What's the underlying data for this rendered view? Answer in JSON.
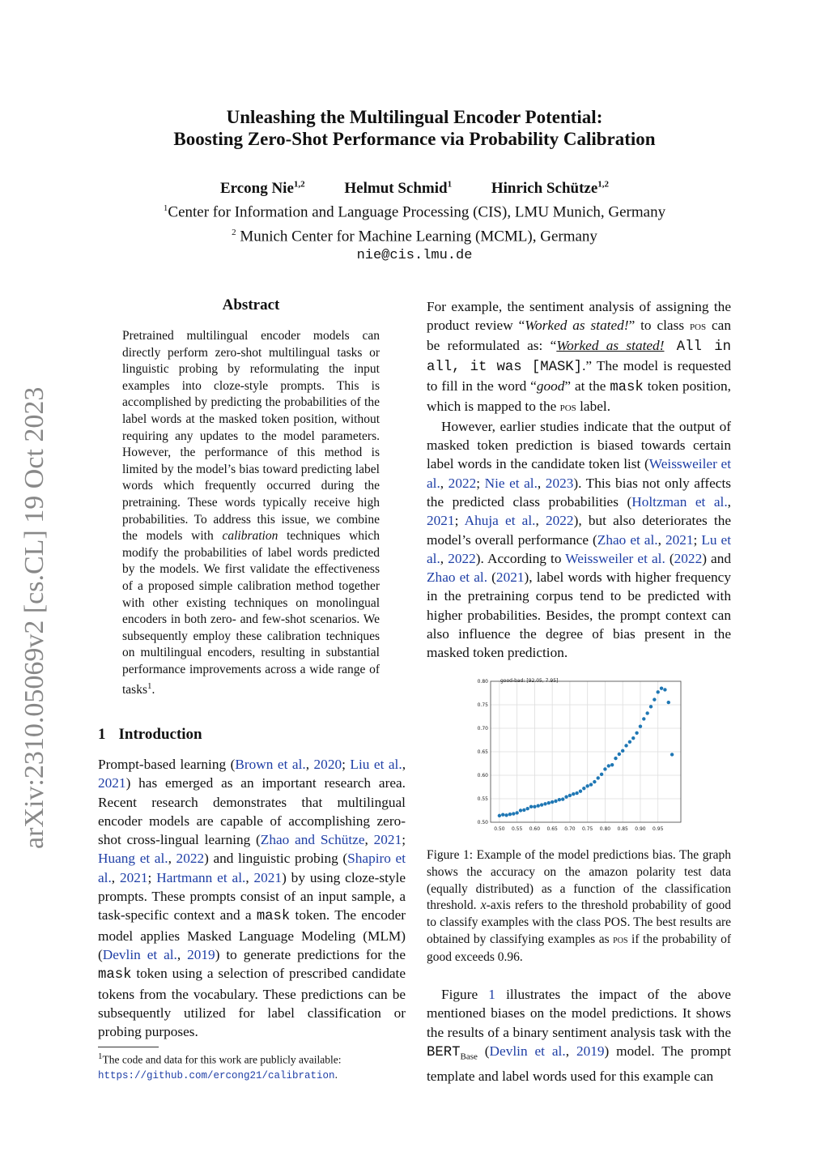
{
  "sidebar": {
    "arxiv_id": "arXiv:2310.05069v2  [cs.CL]  19 Oct 2023"
  },
  "header": {
    "title_line1": "Unleashing the Multilingual Encoder Potential:",
    "title_line2": "Boosting Zero-Shot Performance via Probability Calibration",
    "authors": [
      {
        "name": "Ercong Nie",
        "sup": "1,2"
      },
      {
        "name": "Helmut Schmid",
        "sup": "1"
      },
      {
        "name": "Hinrich Schütze",
        "sup": "1,2"
      }
    ],
    "affil1_sup": "1",
    "affil1": "Center for Information and Language Processing (CIS), LMU Munich, Germany",
    "affil2_sup": "2",
    "affil2": " Munich Center for Machine Learning (MCML), Germany",
    "email": "nie@cis.lmu.de"
  },
  "abstract": {
    "title": "Abstract",
    "segments": [
      {
        "t": "Pretrained multilingual encoder models can directly perform zero-shot multilingual tasks or linguistic probing by reformulating the input examples into cloze-style prompts. This is accomplished by predicting the probabilities of the label words at the masked token position, without requiring any updates to the model parameters. However, the performance of this method is limited by the model’s bias toward predicting label words which frequently occurred during the pretraining. These words typically receive high probabilities. To address this issue, we combine the models with "
      },
      {
        "t": "calibration",
        "i": true
      },
      {
        "t": " techniques which modify the probabilities of label words predicted by the models. We first validate the effectiveness of a proposed simple calibration method together with other existing techniques on monolingual encoders in both zero- and few-shot scenarios. We subsequently employ these calibration techniques on multilingual encoders, resulting in substantial performance improvements across a wide range of tasks"
      },
      {
        "t": "1",
        "sup": true
      },
      {
        "t": "."
      }
    ]
  },
  "section": {
    "number": "1",
    "title": "Introduction"
  },
  "intro": {
    "segments": [
      {
        "t": "Prompt-based learning ("
      },
      {
        "t": "Brown et al.",
        "link": true
      },
      {
        "t": ", "
      },
      {
        "t": "2020",
        "link": true
      },
      {
        "t": "; "
      },
      {
        "t": "Liu et al.",
        "link": true
      },
      {
        "t": ", "
      },
      {
        "t": "2021",
        "link": true
      },
      {
        "t": ") has emerged as an important research area. Recent research demonstrates that multilingual encoder models are capable of accomplishing zero-shot cross-lingual learning ("
      },
      {
        "t": "Zhao and Schütze",
        "link": true
      },
      {
        "t": ", "
      },
      {
        "t": "2021",
        "link": true
      },
      {
        "t": "; "
      },
      {
        "t": "Huang et al.",
        "link": true
      },
      {
        "t": ", "
      },
      {
        "t": "2022",
        "link": true
      },
      {
        "t": ") and linguistic probing ("
      },
      {
        "t": "Shapiro et al.",
        "link": true
      },
      {
        "t": ", "
      },
      {
        "t": "2021",
        "link": true
      },
      {
        "t": "; "
      },
      {
        "t": "Hartmann et al.",
        "link": true
      },
      {
        "t": ", "
      },
      {
        "t": "2021",
        "link": true
      },
      {
        "t": ") by using cloze-style prompts. These prompts consist of an input sample, a task-specific context and a "
      },
      {
        "t": "mask",
        "mono": true
      },
      {
        "t": " token. The encoder model applies Masked Language Modeling (MLM) ("
      },
      {
        "t": "Devlin et al.",
        "link": true
      },
      {
        "t": ", "
      },
      {
        "t": "2019",
        "link": true
      },
      {
        "t": ") to generate predictions for the "
      },
      {
        "t": "mask",
        "mono": true
      },
      {
        "t": " token using a selection of prescribed candidate tokens from the vocabulary. These predictions can be subsequently utilized for label classification or probing purposes."
      }
    ]
  },
  "footnote": {
    "num": "1",
    "text": "The code and data for this work are publicly available: ",
    "url": "https://github.com/ercong21/calibration",
    "end": "."
  },
  "right_p1": {
    "segments": [
      {
        "t": "For example, the sentiment analysis of assigning the product review “"
      },
      {
        "t": "Worked as stated!",
        "i": true
      },
      {
        "t": "” to class "
      },
      {
        "t": "pos",
        "sc": true
      },
      {
        "t": " can be reformulated as: “"
      },
      {
        "t": "Worked as stated!",
        "i": true,
        "u": true
      },
      {
        "t": " All in all, it was [MASK]",
        "mono": true
      },
      {
        "t": ".” The model is requested to fill in the word “"
      },
      {
        "t": "good",
        "i": true
      },
      {
        "t": "” at the "
      },
      {
        "t": "mask",
        "mono": true
      },
      {
        "t": " token position, which is mapped to the "
      },
      {
        "t": "pos",
        "sc": true
      },
      {
        "t": " label."
      }
    ]
  },
  "right_p2": {
    "segments": [
      {
        "t": "However, earlier studies indicate that the output of masked token prediction is biased towards certain label words in the candidate token list ("
      },
      {
        "t": "Weissweiler et al.",
        "link": true
      },
      {
        "t": ", "
      },
      {
        "t": "2022",
        "link": true
      },
      {
        "t": "; "
      },
      {
        "t": "Nie et al.",
        "link": true
      },
      {
        "t": ", "
      },
      {
        "t": "2023",
        "link": true
      },
      {
        "t": "). This bias not only affects the predicted class probabilities ("
      },
      {
        "t": "Holtzman et al.",
        "link": true
      },
      {
        "t": ", "
      },
      {
        "t": "2021",
        "link": true
      },
      {
        "t": "; "
      },
      {
        "t": "Ahuja et al.",
        "link": true
      },
      {
        "t": ", "
      },
      {
        "t": "2022",
        "link": true
      },
      {
        "t": "), but also deteriorates the model’s overall performance ("
      },
      {
        "t": "Zhao et al.",
        "link": true
      },
      {
        "t": ", "
      },
      {
        "t": "2021",
        "link": true
      },
      {
        "t": "; "
      },
      {
        "t": "Lu et al.",
        "link": true
      },
      {
        "t": ", "
      },
      {
        "t": "2022",
        "link": true
      },
      {
        "t": "). According to "
      },
      {
        "t": "Weissweiler et al.",
        "link": true
      },
      {
        "t": " ("
      },
      {
        "t": "2022",
        "link": true
      },
      {
        "t": ") and "
      },
      {
        "t": "Zhao et al.",
        "link": true
      },
      {
        "t": " ("
      },
      {
        "t": "2021",
        "link": true
      },
      {
        "t": "), label words with higher frequency in the pretraining corpus tend to be predicted with higher probabilities. Besides, the prompt context can also influence the degree of bias present in the masked token prediction."
      }
    ]
  },
  "caption": {
    "segments": [
      {
        "t": "Figure 1: Example of the model predictions bias. The graph shows the accuracy on the amazon polarity test data (equally distributed) as a function of the classification threshold. "
      },
      {
        "t": "x",
        "i": true
      },
      {
        "t": "-axis refers to the threshold probability of good to classify examples with the class POS. The best results are obtained by classifying examples as "
      },
      {
        "t": "pos",
        "sc": true
      },
      {
        "t": " if the probability of good exceeds 0.96."
      }
    ]
  },
  "right_p3": {
    "segments": [
      {
        "t": "Figure "
      },
      {
        "t": "1",
        "link": true
      },
      {
        "t": " illustrates the impact of the above mentioned biases on the model predictions. It shows the results of a binary sentiment analysis task with the "
      },
      {
        "t": "BERT",
        "mono": true
      },
      {
        "t": "Base",
        "sub": true
      },
      {
        "t": " ("
      },
      {
        "t": "Devlin et al.",
        "link": true
      },
      {
        "t": ", "
      },
      {
        "t": "2019",
        "link": true
      },
      {
        "t": ") model. The prompt template and label words used for this example can"
      }
    ]
  },
  "chart_data": {
    "type": "scatter",
    "annotation": "good-bad: [92.05, 7.95]",
    "xlim": [
      0.475,
      1.015
    ],
    "ylim": [
      0.5,
      0.8
    ],
    "grid": true,
    "xticks": [
      "0.50",
      "0.55",
      "0.60",
      "0.65",
      "0.70",
      "0.75",
      "0.80",
      "0.85",
      "0.90",
      "0.95"
    ],
    "yticks": [
      "0.50",
      "0.55",
      "0.60",
      "0.65",
      "0.70",
      "0.75",
      "0.80"
    ],
    "color": "#1f77b4",
    "x": [
      0.5,
      0.51,
      0.52,
      0.53,
      0.54,
      0.55,
      0.56,
      0.57,
      0.58,
      0.59,
      0.6,
      0.61,
      0.62,
      0.63,
      0.64,
      0.65,
      0.66,
      0.67,
      0.68,
      0.69,
      0.7,
      0.71,
      0.72,
      0.73,
      0.74,
      0.75,
      0.76,
      0.77,
      0.78,
      0.79,
      0.8,
      0.81,
      0.82,
      0.83,
      0.84,
      0.85,
      0.86,
      0.87,
      0.88,
      0.89,
      0.9,
      0.91,
      0.92,
      0.93,
      0.94,
      0.95,
      0.96,
      0.97,
      0.98,
      0.99
    ],
    "y": [
      0.514,
      0.516,
      0.515,
      0.517,
      0.518,
      0.52,
      0.525,
      0.526,
      0.529,
      0.533,
      0.533,
      0.535,
      0.537,
      0.539,
      0.541,
      0.543,
      0.545,
      0.548,
      0.549,
      0.554,
      0.557,
      0.56,
      0.562,
      0.566,
      0.572,
      0.577,
      0.58,
      0.586,
      0.594,
      0.602,
      0.613,
      0.62,
      0.622,
      0.636,
      0.645,
      0.652,
      0.663,
      0.671,
      0.679,
      0.69,
      0.704,
      0.72,
      0.732,
      0.746,
      0.761,
      0.777,
      0.785,
      0.782,
      0.755,
      0.644
    ]
  }
}
